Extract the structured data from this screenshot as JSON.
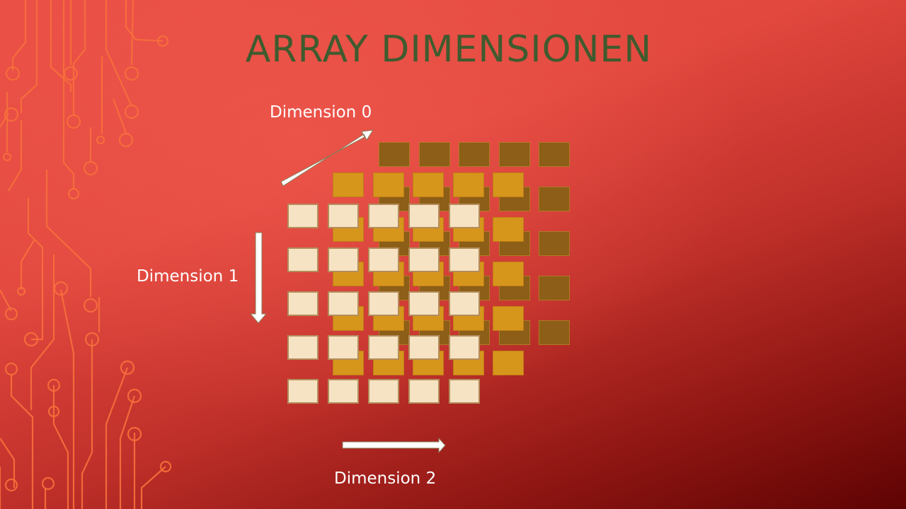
{
  "slide": {
    "title": "ARRAY DIMENSIONEN"
  },
  "dimensions": {
    "dim0": "Dimension 0",
    "dim1": "Dimension 1",
    "dim2": "Dimension 2"
  },
  "grid": {
    "layers": 3,
    "rows": 5,
    "cols": 5
  },
  "colors": {
    "title": "#3f5b2e",
    "back_layer": "#8c5e17",
    "middle_layer": "#d6961c",
    "front_layer": "#f6e3c3",
    "arrows": "#ffffff",
    "circuit": "#f7703c"
  }
}
